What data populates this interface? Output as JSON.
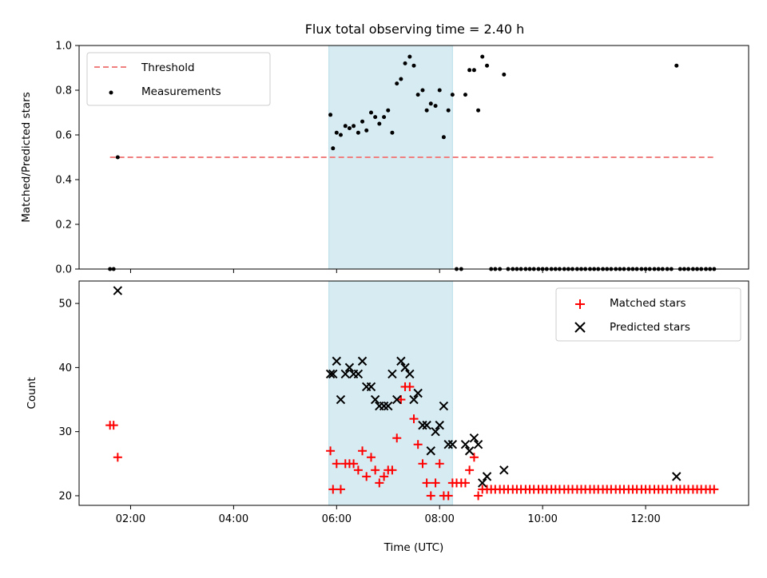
{
  "chart_data": {
    "title": "Flux total observing time = 2.40 h",
    "xlabel": "Time (UTC)",
    "x_unit": "hours UTC",
    "xlim": [
      1.0,
      14.0
    ],
    "xticks": [
      {
        "value": 2,
        "label": "02:00"
      },
      {
        "value": 4,
        "label": "04:00"
      },
      {
        "value": 6,
        "label": "06:00"
      },
      {
        "value": 8,
        "label": "08:00"
      },
      {
        "value": 10,
        "label": "10:00"
      },
      {
        "value": 12,
        "label": "12:00"
      }
    ],
    "span": {
      "x0": 5.85,
      "x1": 8.25,
      "color": "#add8e6",
      "opacity": 0.5
    },
    "panels": [
      {
        "type": "scatter",
        "ylabel": "Matched/Predicted stars",
        "ylim": [
          0.0,
          1.0
        ],
        "yticks": [
          {
            "value": 0.0,
            "label": "0.0"
          },
          {
            "value": 0.2,
            "label": "0.2"
          },
          {
            "value": 0.4,
            "label": "0.4"
          },
          {
            "value": 0.6,
            "label": "0.6"
          },
          {
            "value": 0.8,
            "label": "0.8"
          },
          {
            "value": 1.0,
            "label": "1.0"
          }
        ],
        "threshold": {
          "name": "Threshold",
          "value": 0.5,
          "x0": 1.6,
          "x1": 13.35,
          "color": "#f08080"
        },
        "series": [
          {
            "name": "Measurements",
            "marker": "dot",
            "color": "#000000",
            "x": [
              1.6,
              1.67,
              1.75,
              5.88,
              5.93,
              6.0,
              6.08,
              6.17,
              6.25,
              6.33,
              6.42,
              6.5,
              6.58,
              6.67,
              6.75,
              6.83,
              6.92,
              7.0,
              7.08,
              7.17,
              7.25,
              7.33,
              7.42,
              7.5,
              7.58,
              7.67,
              7.75,
              7.83,
              7.92,
              8.0,
              8.08,
              8.17,
              8.25,
              8.33,
              8.42,
              8.5,
              8.58,
              8.67,
              8.75,
              8.83,
              8.92,
              9.0,
              9.08,
              9.17,
              9.25,
              9.33,
              9.42,
              9.5,
              9.58,
              9.67,
              9.75,
              9.83,
              9.92,
              10.0,
              10.08,
              10.17,
              10.25,
              10.33,
              10.42,
              10.5,
              10.58,
              10.67,
              10.75,
              10.83,
              10.92,
              11.0,
              11.08,
              11.17,
              11.25,
              11.33,
              11.42,
              11.5,
              11.58,
              11.67,
              11.75,
              11.83,
              11.92,
              12.0,
              12.08,
              12.17,
              12.25,
              12.33,
              12.42,
              12.5,
              12.6,
              12.67,
              12.75,
              12.83,
              12.92,
              13.0,
              13.08,
              13.17,
              13.25,
              13.33
            ],
            "y": [
              0.0,
              0.0,
              0.5,
              0.69,
              0.54,
              0.61,
              0.6,
              0.64,
              0.63,
              0.64,
              0.61,
              0.66,
              0.62,
              0.7,
              0.68,
              0.65,
              0.68,
              0.71,
              0.61,
              0.83,
              0.85,
              0.92,
              0.95,
              0.91,
              0.78,
              0.8,
              0.71,
              0.74,
              0.73,
              0.8,
              0.59,
              0.71,
              0.78,
              0.0,
              0.0,
              0.78,
              0.89,
              0.89,
              0.71,
              0.95,
              0.91,
              0.0,
              0.0,
              0.0,
              0.87,
              0.0,
              0.0,
              0.0,
              0.0,
              0.0,
              0.0,
              0.0,
              0.0,
              0.0,
              0.0,
              0.0,
              0.0,
              0.0,
              0.0,
              0.0,
              0.0,
              0.0,
              0.0,
              0.0,
              0.0,
              0.0,
              0.0,
              0.0,
              0.0,
              0.0,
              0.0,
              0.0,
              0.0,
              0.0,
              0.0,
              0.0,
              0.0,
              0.0,
              0.0,
              0.0,
              0.0,
              0.0,
              0.0,
              0.0,
              0.91,
              0.0,
              0.0,
              0.0,
              0.0,
              0.0,
              0.0,
              0.0,
              0.0,
              0.0
            ]
          }
        ],
        "legend": {
          "placement": "upper-left",
          "entries": [
            "Threshold",
            "Measurements"
          ]
        }
      },
      {
        "type": "scatter",
        "ylabel": "Count",
        "ylim": [
          18.5,
          53.5
        ],
        "yticks": [
          {
            "value": 20,
            "label": "20"
          },
          {
            "value": 30,
            "label": "30"
          },
          {
            "value": 40,
            "label": "40"
          },
          {
            "value": 50,
            "label": "50"
          }
        ],
        "series": [
          {
            "name": "Matched stars",
            "marker": "plus",
            "color": "#ff0000",
            "x": [
              1.6,
              1.67,
              1.75,
              5.88,
              5.93,
              6.0,
              6.08,
              6.17,
              6.25,
              6.33,
              6.42,
              6.5,
              6.58,
              6.67,
              6.75,
              6.83,
              6.92,
              7.0,
              7.08,
              7.17,
              7.25,
              7.33,
              7.42,
              7.5,
              7.58,
              7.67,
              7.75,
              7.83,
              7.92,
              8.0,
              8.08,
              8.17,
              8.25,
              8.33,
              8.42,
              8.5,
              8.58,
              8.67,
              8.75,
              8.83,
              8.92,
              9.0,
              9.08,
              9.17,
              9.25,
              9.33,
              9.42,
              9.5,
              9.58,
              9.67,
              9.75,
              9.83,
              9.92,
              10.0,
              10.08,
              10.17,
              10.25,
              10.33,
              10.42,
              10.5,
              10.58,
              10.67,
              10.75,
              10.83,
              10.92,
              11.0,
              11.08,
              11.17,
              11.25,
              11.33,
              11.42,
              11.5,
              11.58,
              11.67,
              11.75,
              11.83,
              11.92,
              12.0,
              12.08,
              12.17,
              12.25,
              12.33,
              12.42,
              12.5,
              12.6,
              12.67,
              12.75,
              12.83,
              12.92,
              13.0,
              13.08,
              13.17,
              13.25,
              13.33
            ],
            "y": [
              31,
              31,
              26,
              27,
              21,
              25,
              21,
              25,
              25,
              25,
              24,
              27,
              23,
              26,
              24,
              22,
              23,
              24,
              24,
              29,
              35,
              37,
              37,
              32,
              28,
              25,
              22,
              20,
              22,
              25,
              20,
              20,
              22,
              22,
              22,
              22,
              24,
              26,
              20,
              21,
              21,
              21,
              21,
              21,
              21,
              21,
              21,
              21,
              21,
              21,
              21,
              21,
              21,
              21,
              21,
              21,
              21,
              21,
              21,
              21,
              21,
              21,
              21,
              21,
              21,
              21,
              21,
              21,
              21,
              21,
              21,
              21,
              21,
              21,
              21,
              21,
              21,
              21,
              21,
              21,
              21,
              21,
              21,
              21,
              21,
              21,
              21,
              21,
              21,
              21,
              21,
              21,
              21,
              21
            ]
          },
          {
            "name": "Predicted stars",
            "marker": "x",
            "color": "#000000",
            "x": [
              1.75,
              5.88,
              5.93,
              6.0,
              6.08,
              6.17,
              6.25,
              6.33,
              6.42,
              6.5,
              6.58,
              6.67,
              6.75,
              6.83,
              6.92,
              7.0,
              7.08,
              7.17,
              7.25,
              7.33,
              7.42,
              7.5,
              7.58,
              7.67,
              7.75,
              7.83,
              7.92,
              8.0,
              8.08,
              8.17,
              8.25,
              8.5,
              8.58,
              8.67,
              8.75,
              8.83,
              8.92,
              9.25,
              12.6
            ],
            "y": [
              52,
              39,
              39,
              41,
              35,
              39,
              40,
              39,
              39,
              41,
              37,
              37,
              35,
              34,
              34,
              34,
              39,
              35,
              41,
              40,
              39,
              35,
              36,
              31,
              31,
              27,
              30,
              31,
              34,
              28,
              28,
              28,
              27,
              29,
              28,
              22,
              23,
              24,
              23
            ]
          }
        ],
        "legend": {
          "placement": "upper-right",
          "entries": [
            "Matched stars",
            "Predicted stars"
          ]
        }
      }
    ]
  }
}
